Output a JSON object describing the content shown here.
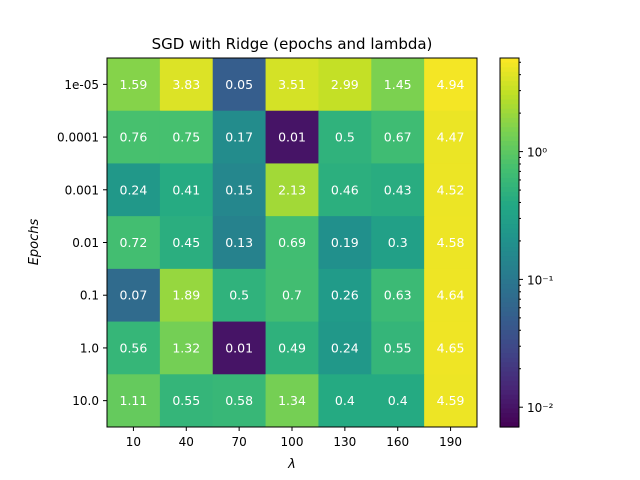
{
  "chart_data": {
    "type": "heatmap",
    "title": "SGD with Ridge (epochs and lambda)",
    "xlabel": "λ",
    "ylabel": "Epochs",
    "x_categories": [
      "10",
      "40",
      "70",
      "100",
      "130",
      "160",
      "190"
    ],
    "y_categories": [
      "1e-05",
      "0.0001",
      "0.001",
      "0.01",
      "0.1",
      "1.0",
      "10.0"
    ],
    "values": [
      [
        1.59,
        3.83,
        0.05,
        3.51,
        2.99,
        1.45,
        4.94
      ],
      [
        0.76,
        0.75,
        0.17,
        0.01,
        0.5,
        0.67,
        4.47
      ],
      [
        0.24,
        0.41,
        0.15,
        2.13,
        0.46,
        0.43,
        4.52
      ],
      [
        0.72,
        0.45,
        0.13,
        0.69,
        0.19,
        0.3,
        4.58
      ],
      [
        0.07,
        1.89,
        0.5,
        0.7,
        0.26,
        0.63,
        4.64
      ],
      [
        0.56,
        1.32,
        0.01,
        0.49,
        0.24,
        0.55,
        4.65
      ],
      [
        1.11,
        0.55,
        0.58,
        1.34,
        0.4,
        0.4,
        4.59
      ]
    ],
    "colormap": "viridis",
    "color_scale": "log",
    "colorbar": {
      "range": [
        0.007,
        5.4
      ],
      "ticks": [
        {
          "value": 0.01,
          "label": "10⁻²"
        },
        {
          "value": 0.1,
          "label": "10⁻¹"
        },
        {
          "value": 1,
          "label": "10⁰"
        }
      ]
    }
  }
}
